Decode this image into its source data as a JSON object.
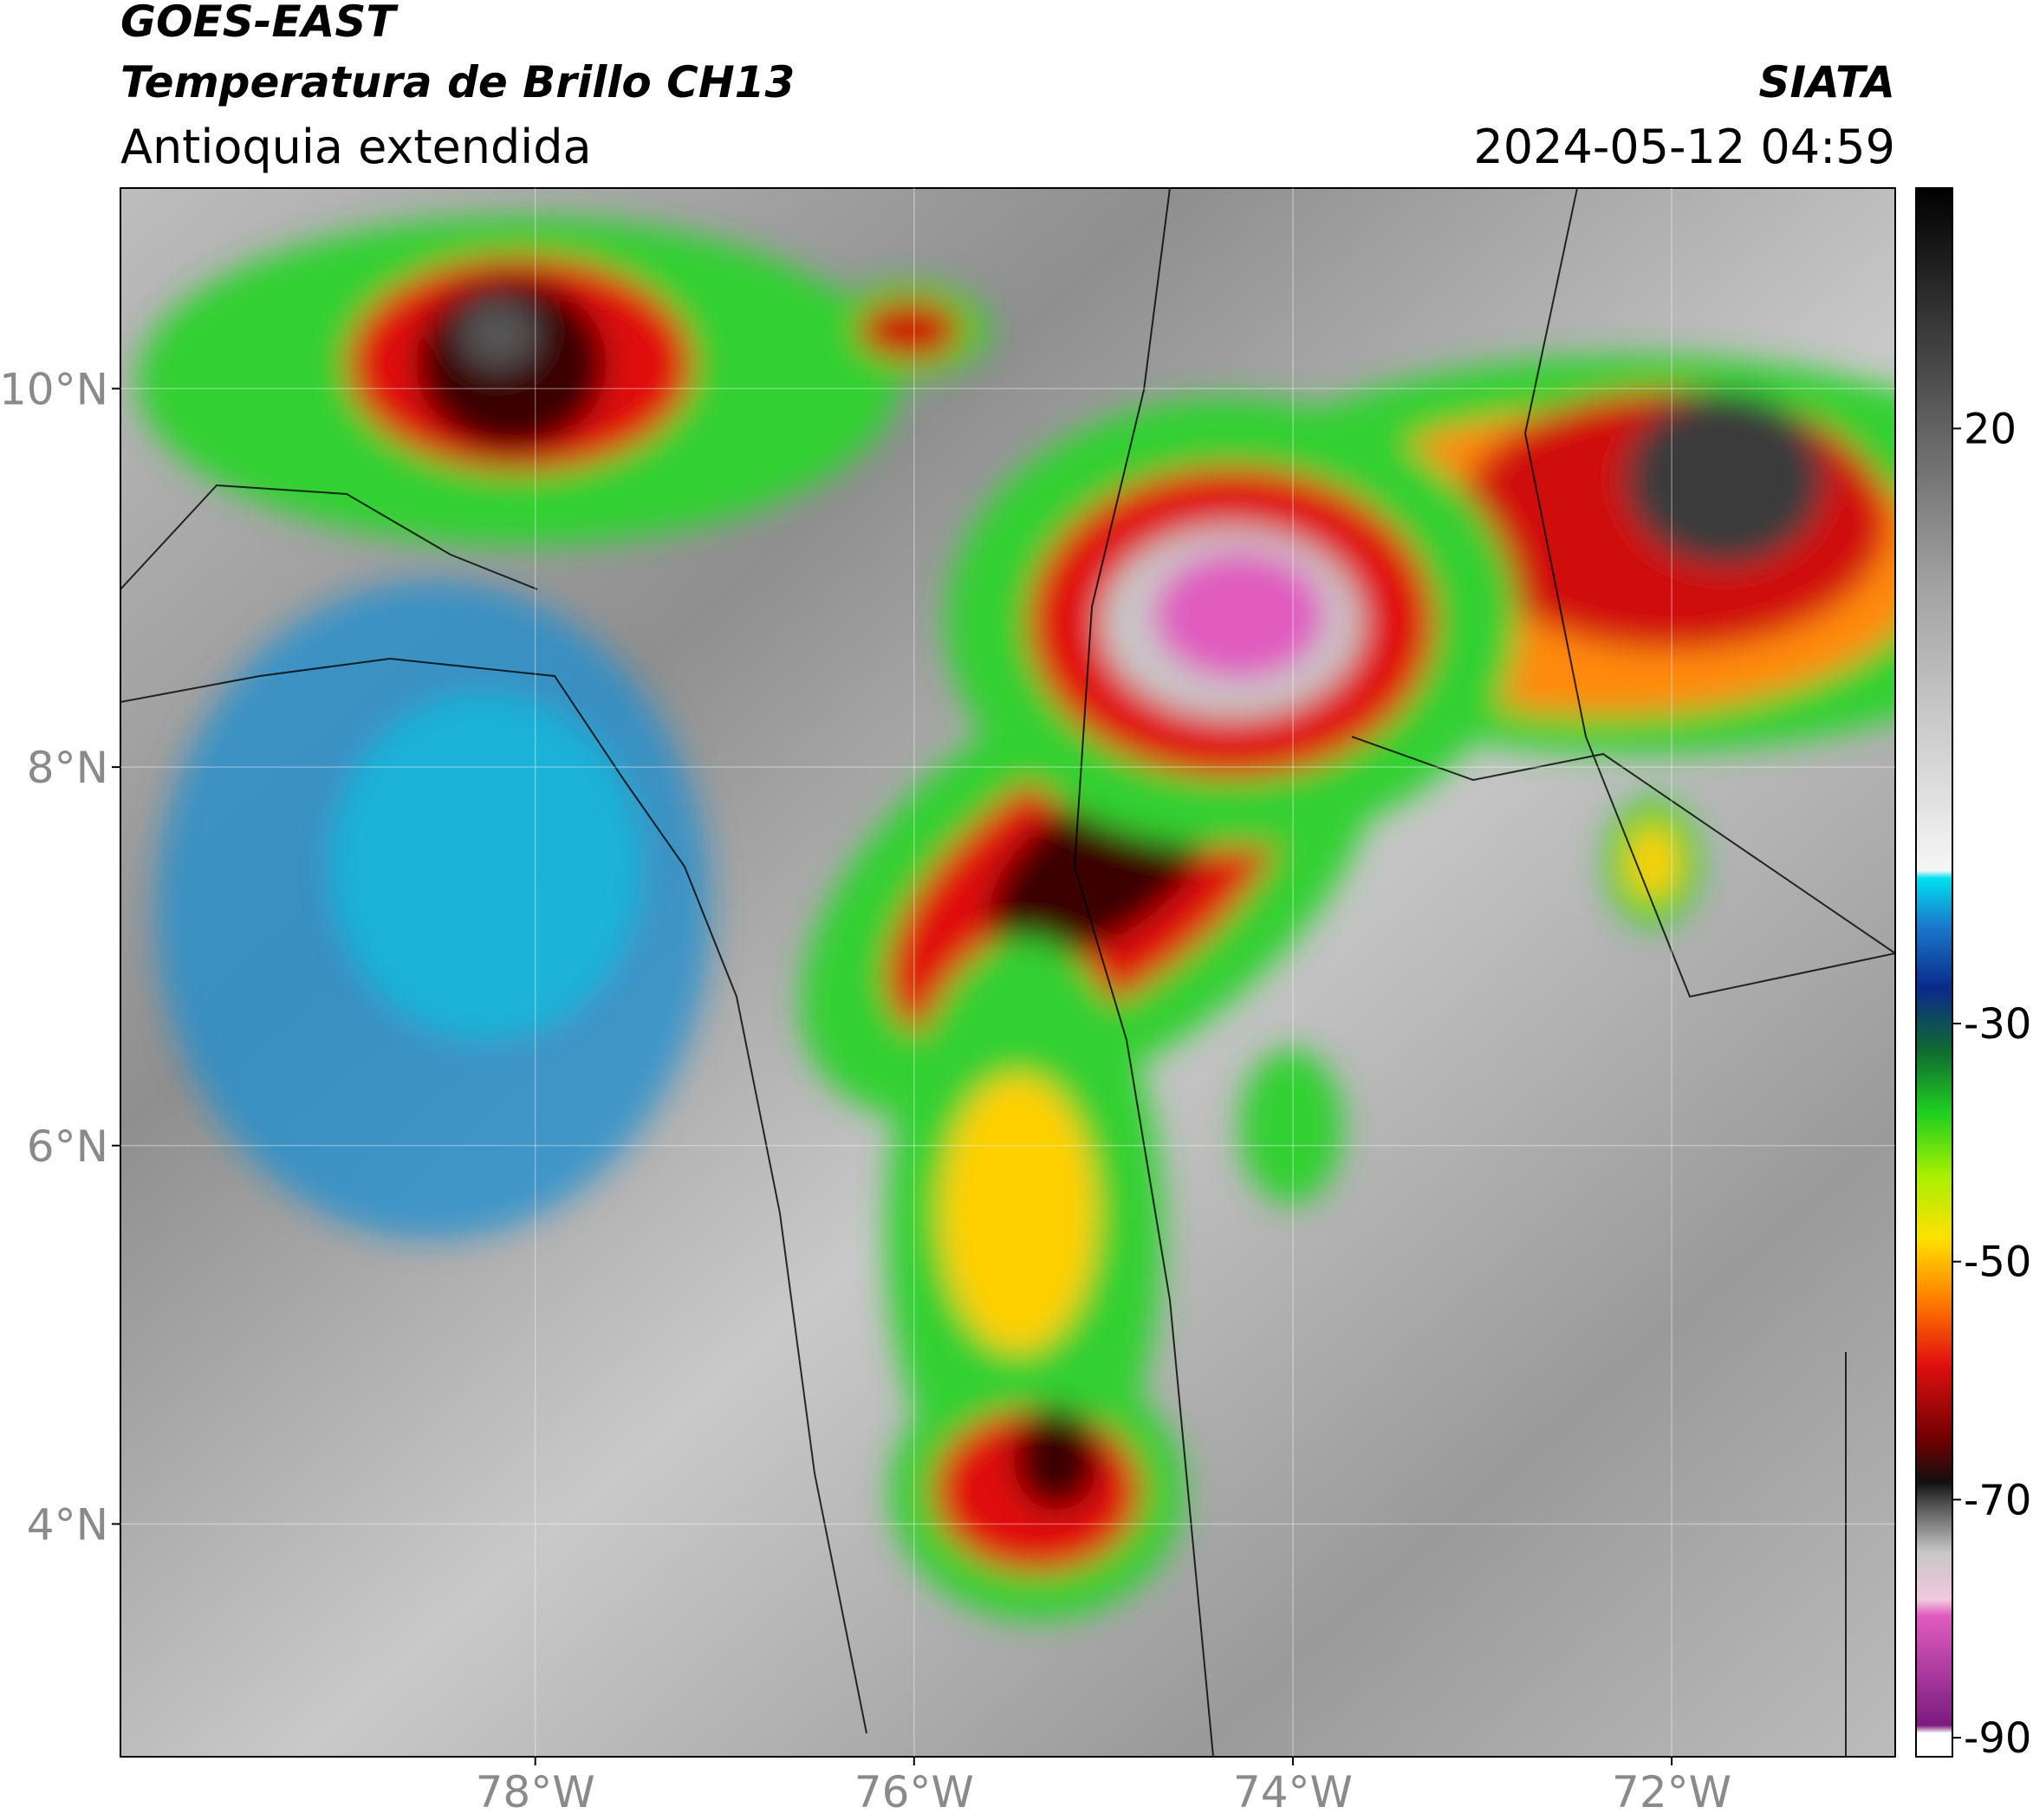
{
  "header": {
    "title": "GOES-EAST",
    "subtitle": "Temperatura de Brillo CH13",
    "region": "Antioquia extendida",
    "source": "SIATA",
    "datetime": "2024-05-12 04:59"
  },
  "map": {
    "xlim": [
      -80.19,
      -70.82
    ],
    "ylim": [
      2.77,
      11.06
    ],
    "xticks": [
      {
        "value": -78,
        "label": "78°W"
      },
      {
        "value": -76,
        "label": "76°W"
      },
      {
        "value": -74,
        "label": "74°W"
      },
      {
        "value": -72,
        "label": "72°W"
      }
    ],
    "yticks": [
      {
        "value": 4,
        "label": "4°N"
      },
      {
        "value": 6,
        "label": "6°N"
      },
      {
        "value": 8,
        "label": "8°N"
      },
      {
        "value": 10,
        "label": "10°N"
      }
    ],
    "grid": true
  },
  "colorbar": {
    "clim": [
      -91.6,
      40.2
    ],
    "ticks": [
      20,
      -30,
      -50,
      -70,
      -90
    ]
  }
}
